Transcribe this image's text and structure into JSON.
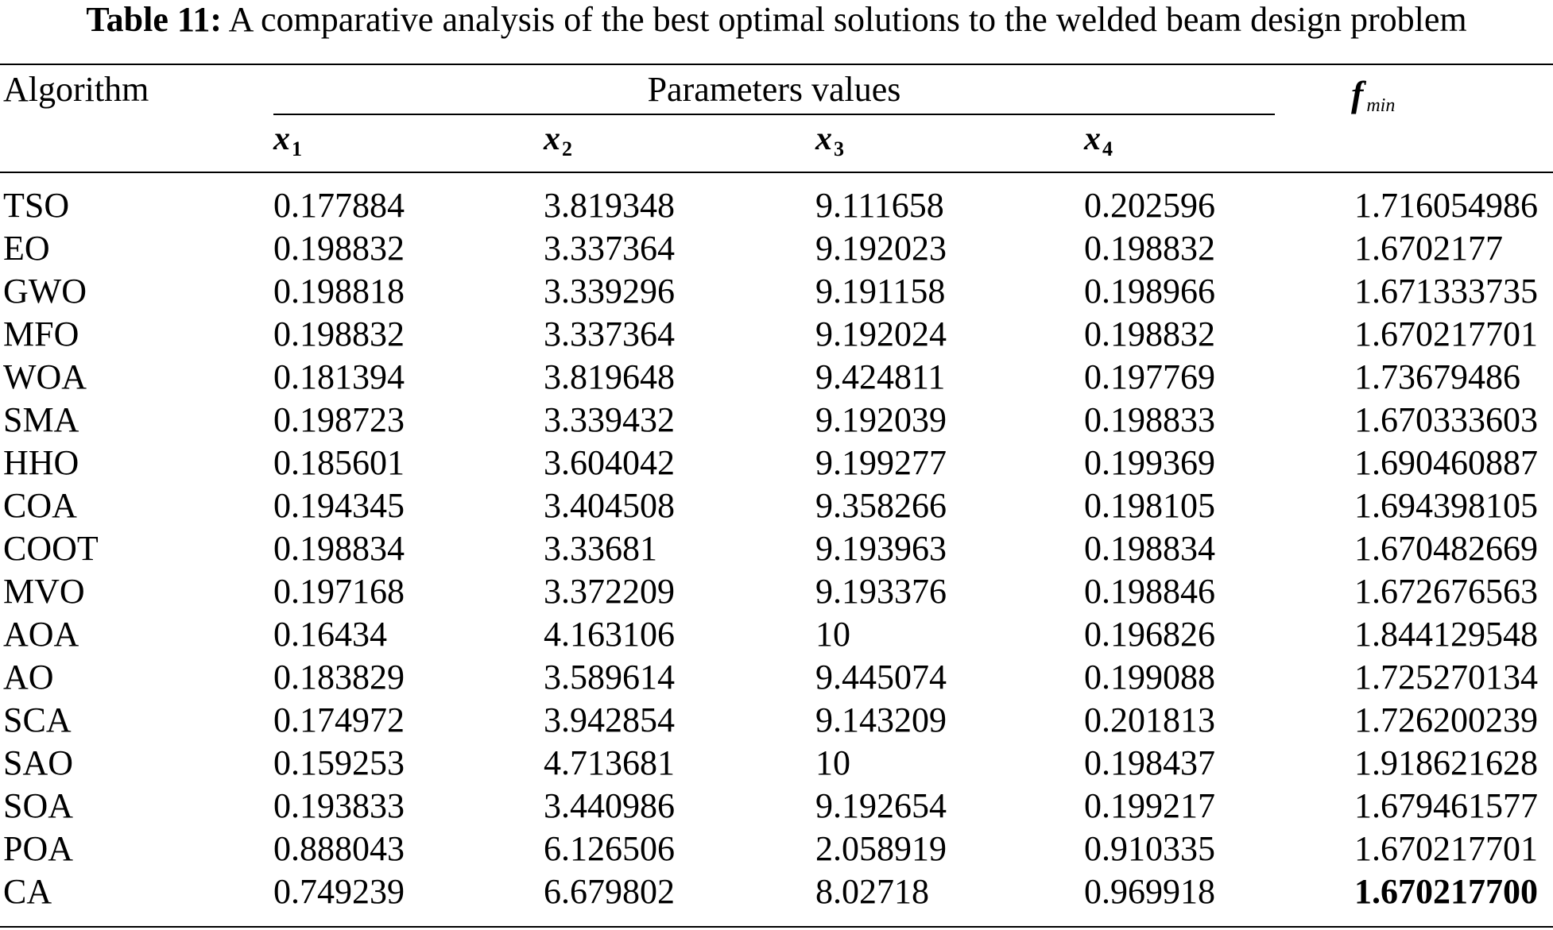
{
  "caption": {
    "label": "Table 11:",
    "text": "A comparative analysis of the best optimal solutions to the welded beam design problem"
  },
  "headers": {
    "algorithm": "Algorithm",
    "parameters": "Parameters values",
    "fmin_main": "f",
    "fmin_sub": "min",
    "vars": [
      {
        "main": "x",
        "sub": "1"
      },
      {
        "main": "x",
        "sub": "2"
      },
      {
        "main": "x",
        "sub": "3"
      },
      {
        "main": "x",
        "sub": "4"
      }
    ]
  },
  "rows": [
    {
      "algorithm": "TSO",
      "x1": "0.177884",
      "x2": "3.819348",
      "x3": "9.111658",
      "x4": "0.202596",
      "fmin": "1.716054986"
    },
    {
      "algorithm": "EO",
      "x1": "0.198832",
      "x2": "3.337364",
      "x3": "9.192023",
      "x4": "0.198832",
      "fmin": "1.6702177"
    },
    {
      "algorithm": "GWO",
      "x1": "0.198818",
      "x2": "3.339296",
      "x3": "9.191158",
      "x4": "0.198966",
      "fmin": "1.671333735"
    },
    {
      "algorithm": "MFO",
      "x1": "0.198832",
      "x2": "3.337364",
      "x3": "9.192024",
      "x4": "0.198832",
      "fmin": "1.670217701"
    },
    {
      "algorithm": "WOA",
      "x1": "0.181394",
      "x2": "3.819648",
      "x3": "9.424811",
      "x4": "0.197769",
      "fmin": "1.73679486"
    },
    {
      "algorithm": "SMA",
      "x1": "0.198723",
      "x2": "3.339432",
      "x3": "9.192039",
      "x4": "0.198833",
      "fmin": "1.670333603"
    },
    {
      "algorithm": "HHO",
      "x1": "0.185601",
      "x2": "3.604042",
      "x3": "9.199277",
      "x4": "0.199369",
      "fmin": "1.690460887"
    },
    {
      "algorithm": "COA",
      "x1": "0.194345",
      "x2": "3.404508",
      "x3": "9.358266",
      "x4": "0.198105",
      "fmin": "1.694398105"
    },
    {
      "algorithm": "COOT",
      "x1": "0.198834",
      "x2": "3.33681",
      "x3": "9.193963",
      "x4": "0.198834",
      "fmin": "1.670482669"
    },
    {
      "algorithm": "MVO",
      "x1": "0.197168",
      "x2": "3.372209",
      "x3": "9.193376",
      "x4": "0.198846",
      "fmin": "1.672676563"
    },
    {
      "algorithm": "AOA",
      "x1": "0.16434",
      "x2": "4.163106",
      "x3": "10",
      "x4": "0.196826",
      "fmin": "1.844129548"
    },
    {
      "algorithm": "AO",
      "x1": "0.183829",
      "x2": "3.589614",
      "x3": "9.445074",
      "x4": "0.199088",
      "fmin": "1.725270134"
    },
    {
      "algorithm": "SCA",
      "x1": "0.174972",
      "x2": "3.942854",
      "x3": "9.143209",
      "x4": "0.201813",
      "fmin": "1.726200239"
    },
    {
      "algorithm": "SAO",
      "x1": "0.159253",
      "x2": "4.713681",
      "x3": "10",
      "x4": "0.198437",
      "fmin": "1.918621628"
    },
    {
      "algorithm": "SOA",
      "x1": "0.193833",
      "x2": "3.440986",
      "x3": "9.192654",
      "x4": "0.199217",
      "fmin": "1.679461577"
    },
    {
      "algorithm": "POA",
      "x1": "0.888043",
      "x2": "6.126506",
      "x3": "2.058919",
      "x4": "0.910335",
      "fmin": "1.670217701"
    },
    {
      "algorithm": "CA",
      "x1": "0.749239",
      "x2": "6.679802",
      "x3": "8.02718",
      "x4": "0.969918",
      "fmin": "1.670217700",
      "fmin_bold": true
    }
  ]
}
